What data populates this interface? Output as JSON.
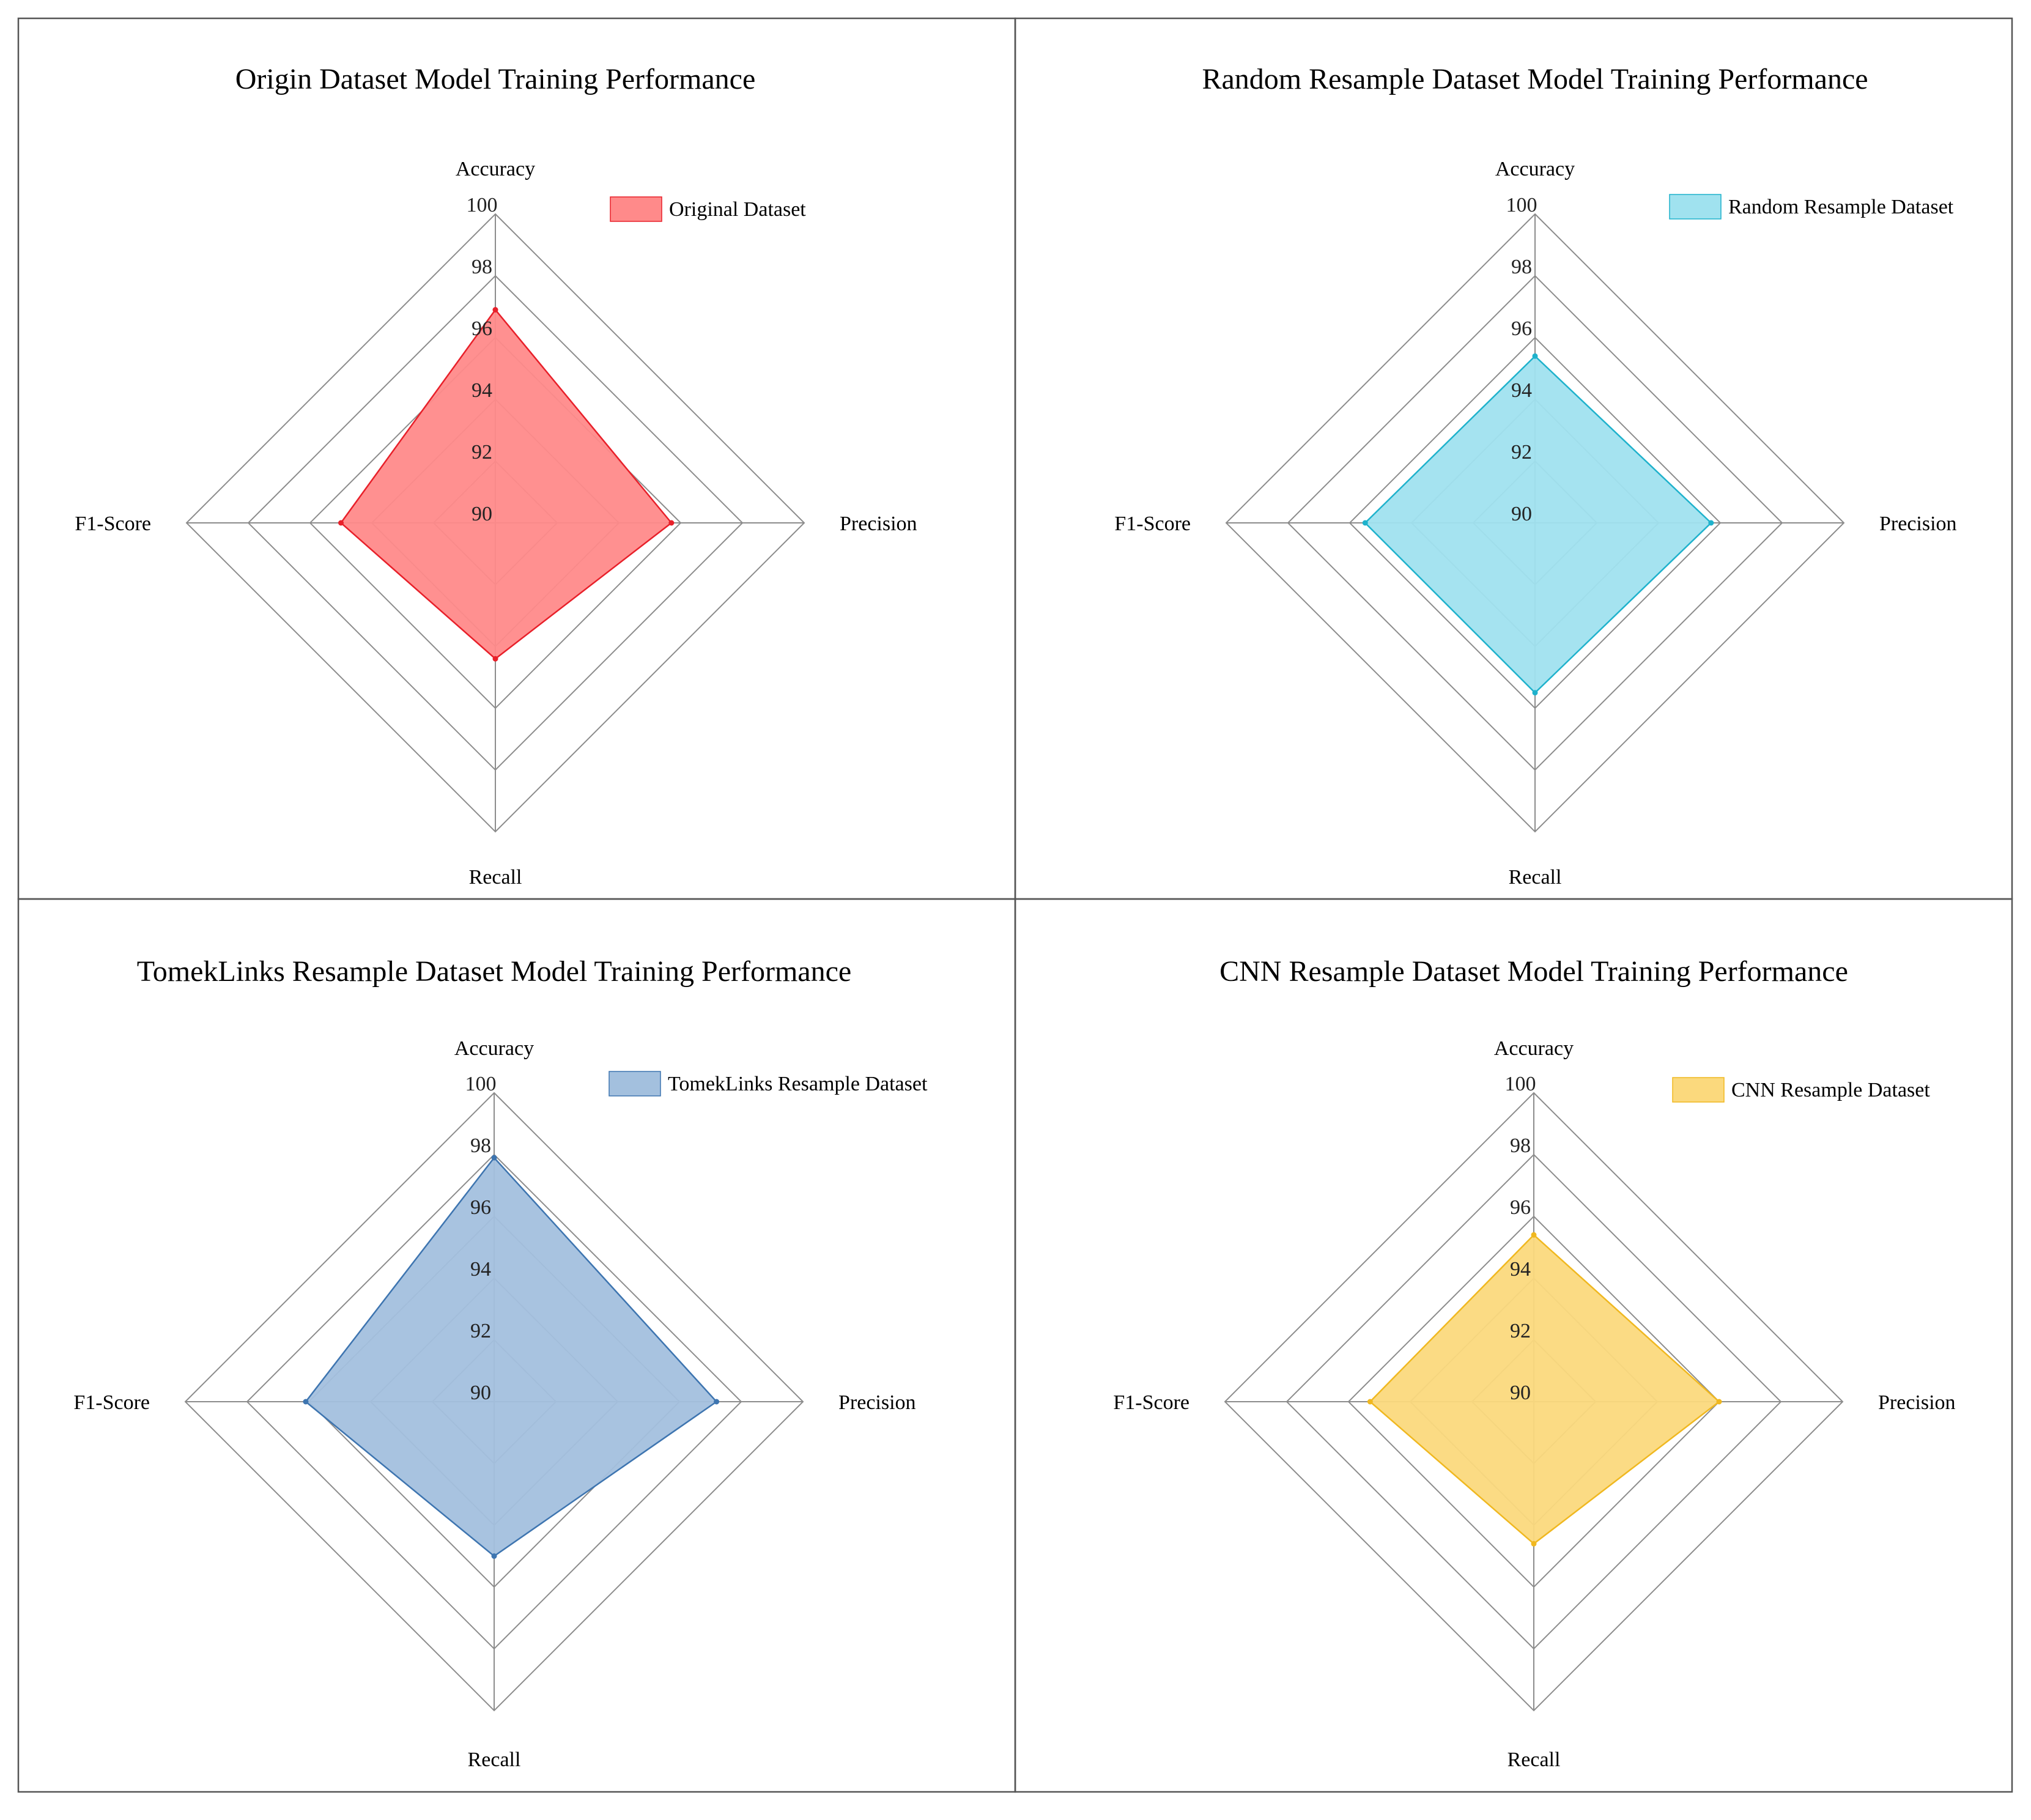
{
  "chart_data": [
    {
      "type": "radar",
      "title": "Origin Dataset Model Training Performance",
      "axes": [
        "Accuracy",
        "Precision",
        "Recall",
        "F1-Score"
      ],
      "ticks": [
        "90",
        "92",
        "94",
        "96",
        "98",
        "100"
      ],
      "range": [
        90,
        100
      ],
      "series": [
        {
          "name": "Original Dataset",
          "values": [
            96.9,
            95.7,
            94.4,
            95.0
          ],
          "color": "#e8202a",
          "fill": "#ff8a8a"
        }
      ],
      "legend_position": "top-right"
    },
    {
      "type": "radar",
      "title": "Random Resample Dataset Model Training Performance",
      "axes": [
        "Accuracy",
        "Precision",
        "Recall",
        "F1-Score"
      ],
      "ticks": [
        "90",
        "92",
        "94",
        "96",
        "98",
        "100"
      ],
      "range": [
        90,
        100
      ],
      "series": [
        {
          "name": "Random Resample Dataset",
          "values": [
            95.4,
            95.7,
            95.5,
            95.5
          ],
          "color": "#1fb2cc",
          "fill": "#a0e2ef"
        }
      ],
      "legend_position": "top-right"
    },
    {
      "type": "radar",
      "title": "TomekLinks Resample Dataset Model Training Performance",
      "axes": [
        "Accuracy",
        "Precision",
        "Recall",
        "F1-Score"
      ],
      "ticks": [
        "90",
        "92",
        "94",
        "96",
        "98",
        "100"
      ],
      "range": [
        90,
        100
      ],
      "series": [
        {
          "name": "TomekLinks Resample Dataset",
          "values": [
            97.9,
            97.2,
            95.0,
            96.1
          ],
          "color": "#3e75b0",
          "fill": "#a3c0de"
        }
      ],
      "legend_position": "top-right"
    },
    {
      "type": "radar",
      "title": "CNN Resample Dataset Model Training Performance",
      "axes": [
        "Accuracy",
        "Precision",
        "Recall",
        "F1-Score"
      ],
      "ticks": [
        "90",
        "92",
        "94",
        "96",
        "98",
        "100"
      ],
      "range": [
        90,
        100
      ],
      "series": [
        {
          "name": "CNN Resample Dataset",
          "values": [
            95.4,
            96.0,
            94.6,
            95.3
          ],
          "color": "#f0b820",
          "fill": "#fbd97d"
        }
      ],
      "legend_position": "top-right"
    }
  ]
}
